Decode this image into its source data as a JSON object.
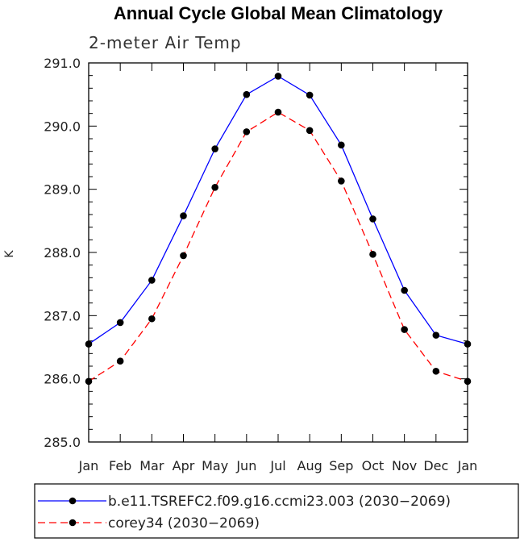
{
  "chart_data": {
    "type": "line",
    "title": "Annual Cycle Global Mean Climatology",
    "subtitle": "2-meter Air Temp",
    "ylabel": "K",
    "xlabel": "",
    "categories": [
      "Jan",
      "Feb",
      "Mar",
      "Apr",
      "May",
      "Jun",
      "Jul",
      "Aug",
      "Sep",
      "Oct",
      "Nov",
      "Dec",
      "Jan"
    ],
    "ylim": [
      285.0,
      291.0
    ],
    "yticks": [
      "285.0",
      "286.0",
      "287.0",
      "288.0",
      "289.0",
      "290.0",
      "291.0"
    ],
    "grid": false,
    "legend_position": "bottom",
    "series": [
      {
        "name": "b.e11.TSREFC2.f09.g16.ccmi23.003 (2030−2069)",
        "color": "#0000ff",
        "dash": "solid",
        "values": [
          286.55,
          286.89,
          287.56,
          288.58,
          289.64,
          290.5,
          290.79,
          290.49,
          289.7,
          288.53,
          287.4,
          286.69,
          286.55
        ]
      },
      {
        "name": "corey34 (2030−2069)",
        "color": "#ff0000",
        "dash": "dashed",
        "values": [
          285.96,
          286.28,
          286.95,
          287.95,
          289.03,
          289.91,
          290.22,
          289.93,
          289.13,
          287.97,
          286.78,
          286.12,
          285.96
        ]
      }
    ]
  }
}
